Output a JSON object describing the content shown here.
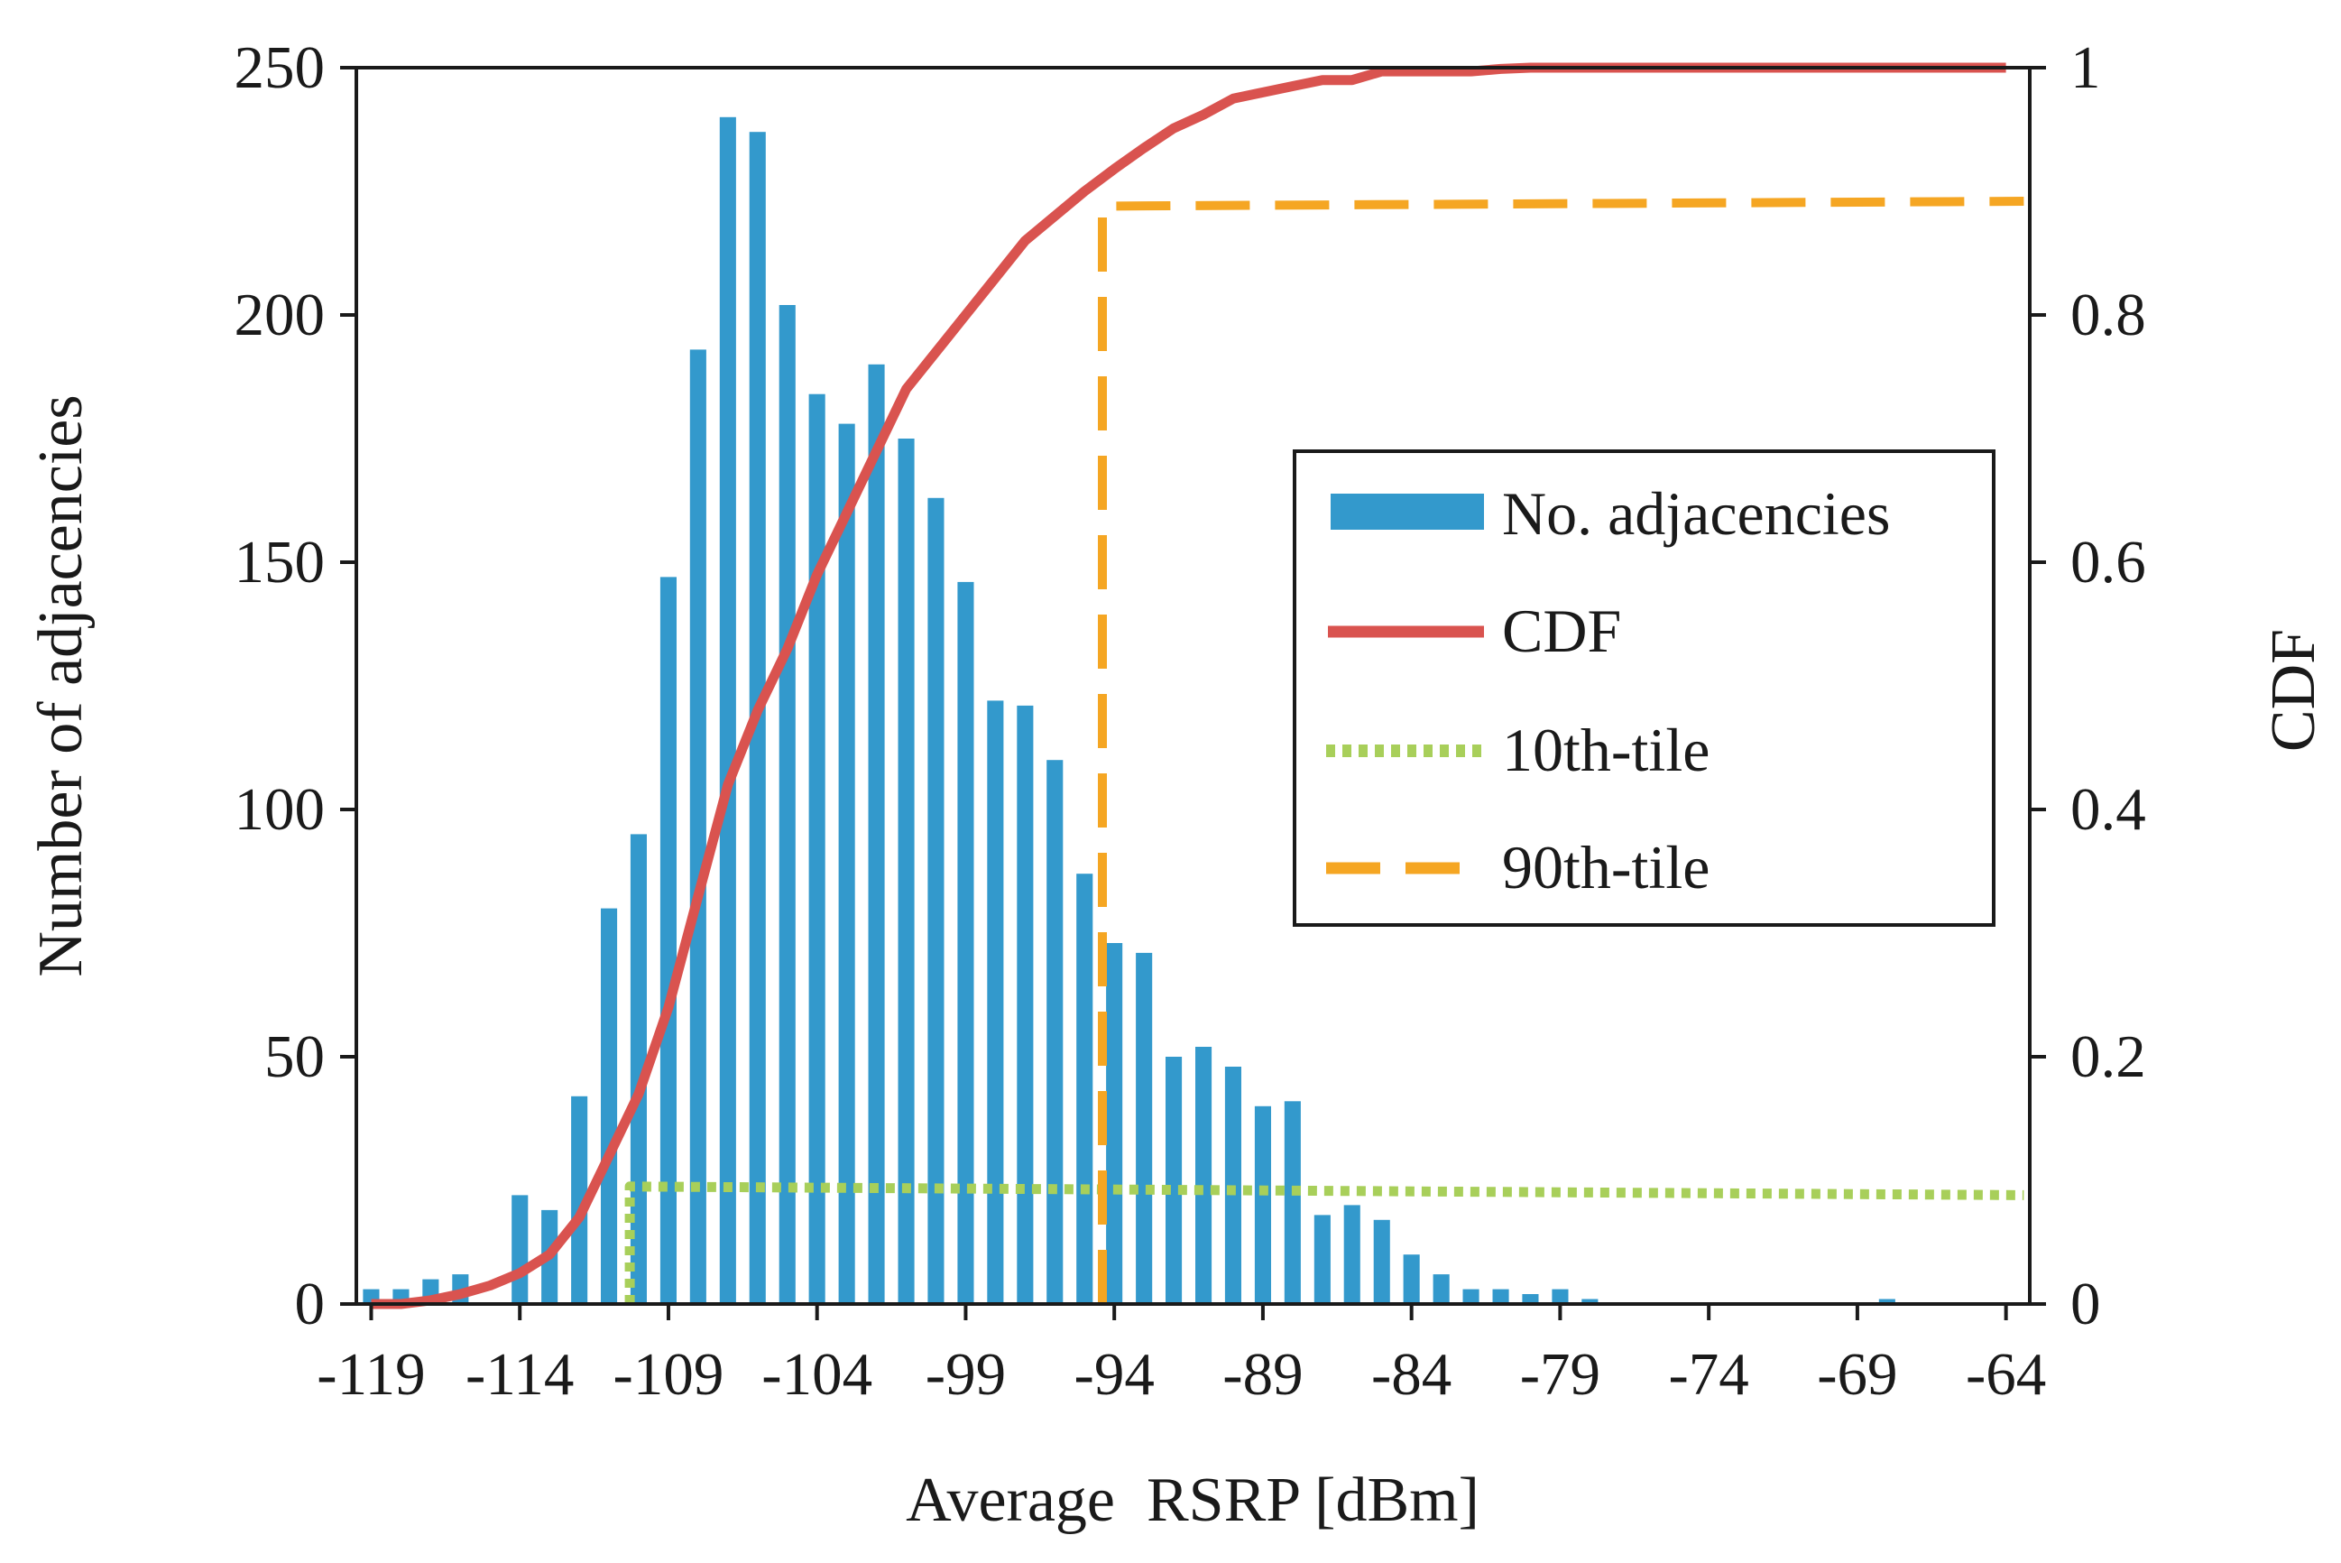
{
  "chart_data": {
    "type": "bar",
    "xlabel": "Average  RSRP [dBm]",
    "ylabel_left": "Number of adjacencies",
    "ylabel_right": "CDF",
    "x_ticks": [
      "-119",
      "-114",
      "-109",
      "-104",
      "-99",
      "-94",
      "-89",
      "-84",
      "-79",
      "-74",
      "-69",
      "-64"
    ],
    "xlim": [
      -119.5,
      -63.2
    ],
    "ylim_left": [
      0,
      250
    ],
    "y_ticks_left": [
      "0",
      "50",
      "100",
      "150",
      "200",
      "250"
    ],
    "ylim_right": [
      0,
      1.0
    ],
    "y_ticks_right": [
      "0",
      "0.2",
      "0.4",
      "0.6",
      "0.8",
      "1"
    ],
    "legend": {
      "position": "center-right",
      "entries": [
        "No. adjacencies",
        "CDF",
        "10th-tile",
        "90th-tile"
      ]
    },
    "colors": {
      "bars": "#3399cc",
      "cdf": "#d9534f",
      "p10": "#a8cf5a",
      "p90": "#f5a623",
      "axis": "#1a1a1a"
    },
    "series": [
      {
        "name": "No. adjacencies",
        "type": "bar",
        "axis": "left",
        "x": [
          -119,
          -118,
          -117,
          -116,
          -115,
          -114,
          -113,
          -112,
          -111,
          -110,
          -109,
          -108,
          -107,
          -106,
          -105,
          -104,
          -103,
          -102,
          -101,
          -100,
          -99,
          -98,
          -97,
          -96,
          -95,
          -94,
          -93,
          -92,
          -91,
          -90,
          -89,
          -88,
          -87,
          -86,
          -85,
          -84,
          -83,
          -82,
          -81,
          -80,
          -79,
          -78,
          -77,
          -76,
          -75,
          -74,
          -73,
          -72,
          -71,
          -70,
          -69,
          -68,
          -67,
          -66,
          -65,
          -64
        ],
        "values": [
          3,
          3,
          5,
          6,
          0,
          22,
          19,
          42,
          80,
          95,
          147,
          193,
          240,
          237,
          202,
          184,
          178,
          190,
          175,
          163,
          146,
          122,
          121,
          110,
          87,
          73,
          71,
          50,
          52,
          48,
          40,
          41,
          18,
          20,
          17,
          10,
          6,
          3,
          3,
          2,
          3,
          1,
          0,
          0,
          0,
          0,
          0,
          0,
          0,
          0,
          0,
          1,
          0,
          0,
          0,
          0
        ]
      },
      {
        "name": "CDF",
        "type": "line",
        "axis": "right",
        "x": [
          -119,
          -118,
          -117,
          -116,
          -115,
          -114,
          -113,
          -112,
          -111,
          -110,
          -109,
          -108,
          -107,
          -106,
          -105,
          -104,
          -103,
          -102,
          -101,
          -100,
          -99,
          -98,
          -97,
          -96,
          -95,
          -94,
          -93,
          -92,
          -91,
          -90,
          -89,
          -88,
          -87,
          -86,
          -85,
          -84,
          -83,
          -82,
          -81,
          -80,
          -79,
          -78,
          -64
        ],
        "values": [
          0.0,
          0.0,
          0.003,
          0.008,
          0.015,
          0.025,
          0.04,
          0.07,
          0.12,
          0.17,
          0.24,
          0.33,
          0.42,
          0.48,
          0.53,
          0.59,
          0.64,
          0.69,
          0.74,
          0.77,
          0.8,
          0.83,
          0.86,
          0.88,
          0.9,
          0.918,
          0.935,
          0.951,
          0.962,
          0.975,
          0.98,
          0.985,
          0.99,
          0.99,
          0.997,
          0.997,
          0.997,
          0.997,
          0.999,
          1.0,
          1.0,
          1.0,
          1.0
        ]
      },
      {
        "name": "10th-tile",
        "type": "line",
        "axis": "right",
        "x": [
          -110.3,
          -110.3,
          -63.4
        ],
        "values": [
          0.0,
          0.095,
          0.088
        ]
      },
      {
        "name": "90th-tile",
        "type": "line",
        "axis": "right",
        "x": [
          -94.4,
          -94.4,
          -63.4
        ],
        "values": [
          0.0,
          0.888,
          0.892
        ]
      }
    ]
  }
}
